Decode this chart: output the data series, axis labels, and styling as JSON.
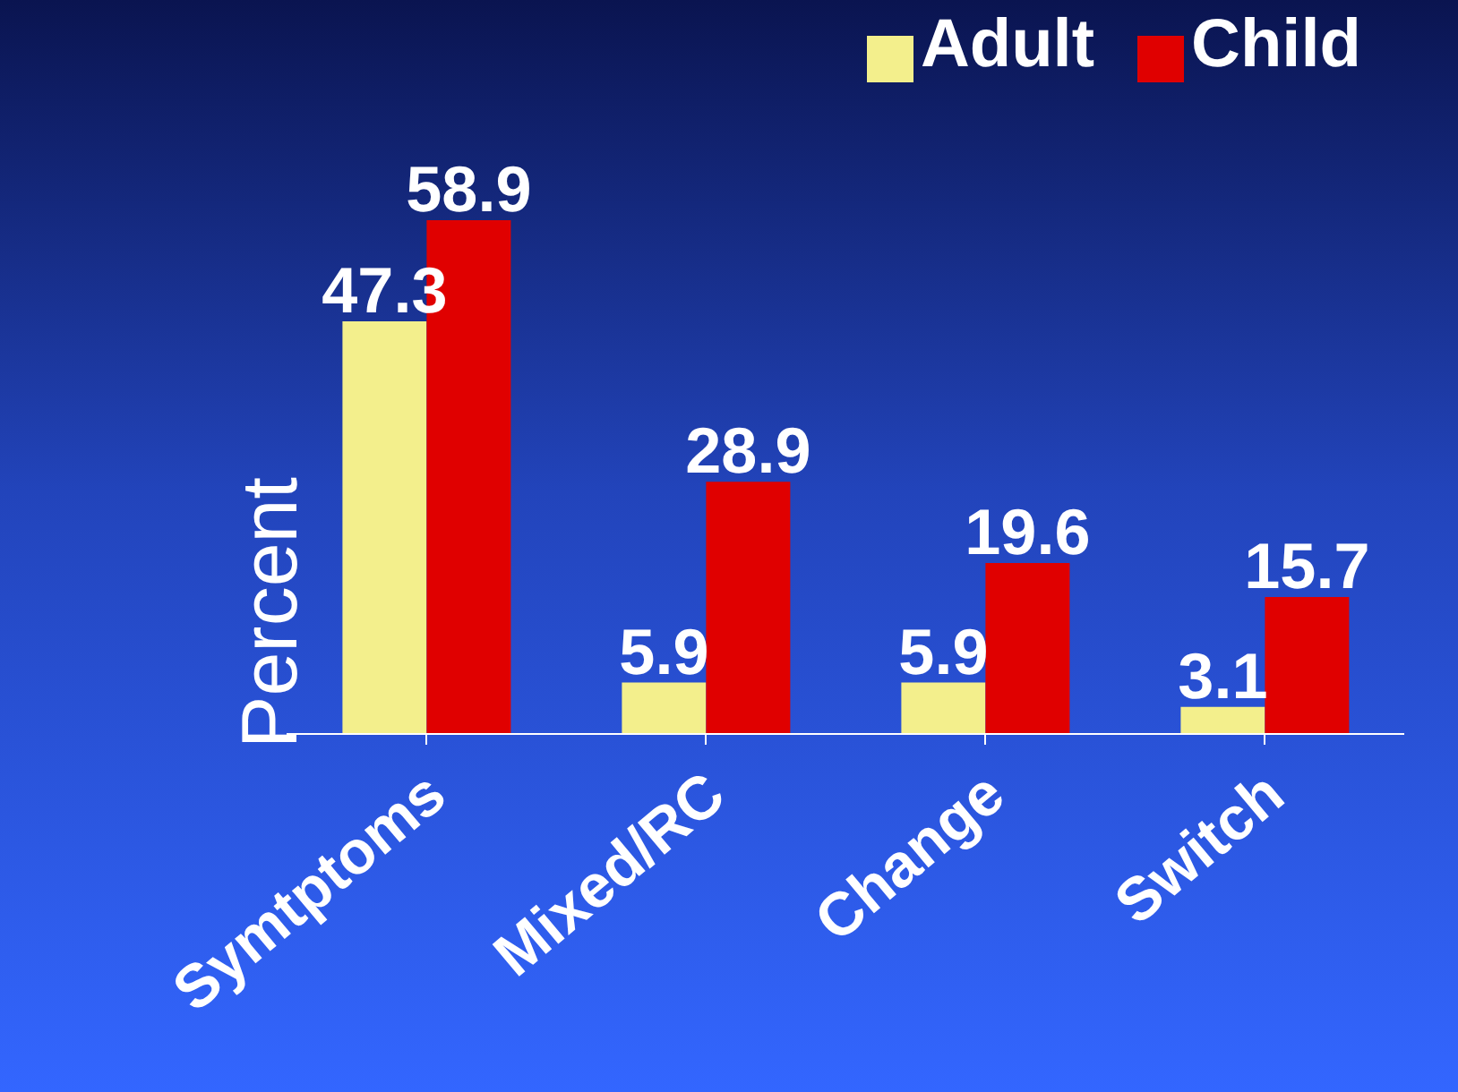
{
  "chart_data": {
    "type": "bar",
    "ylabel": "Percent",
    "categories": [
      "Symtptoms",
      "Mixed/RC",
      "Change",
      "Switch"
    ],
    "series": [
      {
        "name": "Adult",
        "color": "#f3ef8c",
        "values": [
          47.3,
          5.9,
          5.9,
          3.1
        ]
      },
      {
        "name": "Child",
        "color": "#e00000",
        "values": [
          58.9,
          28.9,
          19.6,
          15.7
        ]
      }
    ],
    "data_labels": true,
    "legend": "top right",
    "grid": false
  }
}
